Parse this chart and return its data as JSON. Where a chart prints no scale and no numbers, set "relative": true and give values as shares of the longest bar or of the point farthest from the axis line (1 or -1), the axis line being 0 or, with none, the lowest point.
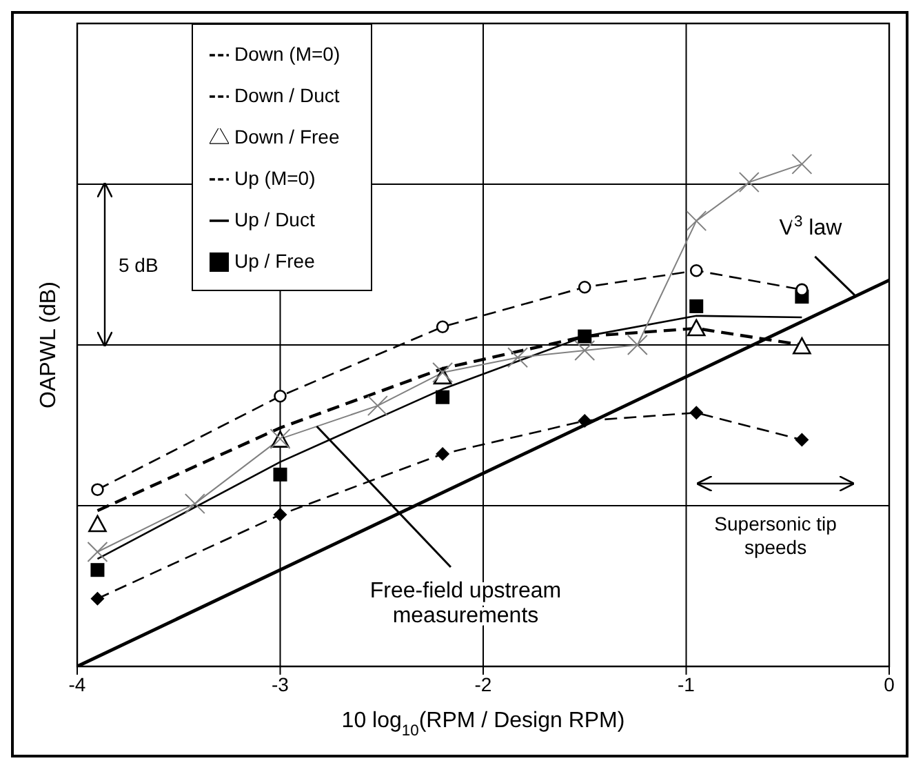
{
  "chart_data": {
    "type": "line",
    "relative": true,
    "xlabel": "10 log$_{10}$(RPM / Design RPM)",
    "ylabel": "OAPWL (dB)",
    "x": [
      -3.9,
      -3.0,
      -2.2,
      -1.5,
      -0.95,
      -0.43
    ],
    "xlim": [
      -4,
      0
    ],
    "xticks": [
      -4,
      -3,
      -2,
      -1,
      0
    ],
    "grid": true,
    "legend": "top",
    "series": [
      {
        "name": "Down (M=0)",
        "color": "#000000",
        "marker": "circle",
        "line_style": "dashed",
        "values": [
          0.352,
          0.538,
          0.676,
          0.755,
          0.788,
          0.75
        ]
      },
      {
        "name": "Down / Duct",
        "color": "#000000",
        "marker": "none",
        "line_style": "dashed",
        "values": [
          0.31,
          0.475,
          0.593,
          0.657,
          0.673,
          0.64
        ]
      },
      {
        "name": "Down / Free",
        "type": "scatter",
        "color": "#000000",
        "marker": "triangle",
        "values": [
          0.283,
          0.451,
          0.577,
          null,
          0.673,
          0.637
        ]
      },
      {
        "name": "Up (M=0)",
        "color": "#000000",
        "marker": "diamond",
        "line_style": "dashed",
        "values": [
          0.135,
          0.302,
          0.423,
          0.489,
          0.505,
          0.451
        ]
      },
      {
        "name": "Up / Duct",
        "color": "#000000",
        "marker": "none",
        "line_style": "solid",
        "values": [
          0.214,
          0.407,
          0.552,
          0.657,
          0.698,
          0.695
        ]
      },
      {
        "name": "Up / Free",
        "type": "scatter",
        "color": "#000000",
        "marker": "square",
        "values": [
          0.192,
          0.382,
          0.536,
          0.657,
          0.717,
          0.736
        ]
      },
      {
        "color": "#808080",
        "marker": "cross",
        "line_style": "solid",
        "x": [
          -3.9,
          -3.42,
          -3.0,
          -2.52,
          -2.2,
          -1.83,
          -1.5,
          -1.24,
          -0.95,
          -0.69,
          -0.43
        ],
        "values": [
          0.228,
          0.324,
          0.453,
          0.519,
          0.585,
          0.615,
          0.629,
          0.64,
          0.887,
          0.964,
          1.0
        ]
      },
      {
        "color": "#000000",
        "marker": "none",
        "line_style": "solid",
        "x": [
          -4,
          0
        ],
        "values": [
          0,
          0.769
        ]
      }
    ],
    "annotations": [
      "5 dB",
      "Supersonic tip speeds",
      {
        "text": "V$^{3}$ law",
        "x": -0.17,
        "y": 0.739
      },
      {
        "text": "Free-field upstream measurements",
        "x": -2.82,
        "y": 0.478
      }
    ]
  }
}
